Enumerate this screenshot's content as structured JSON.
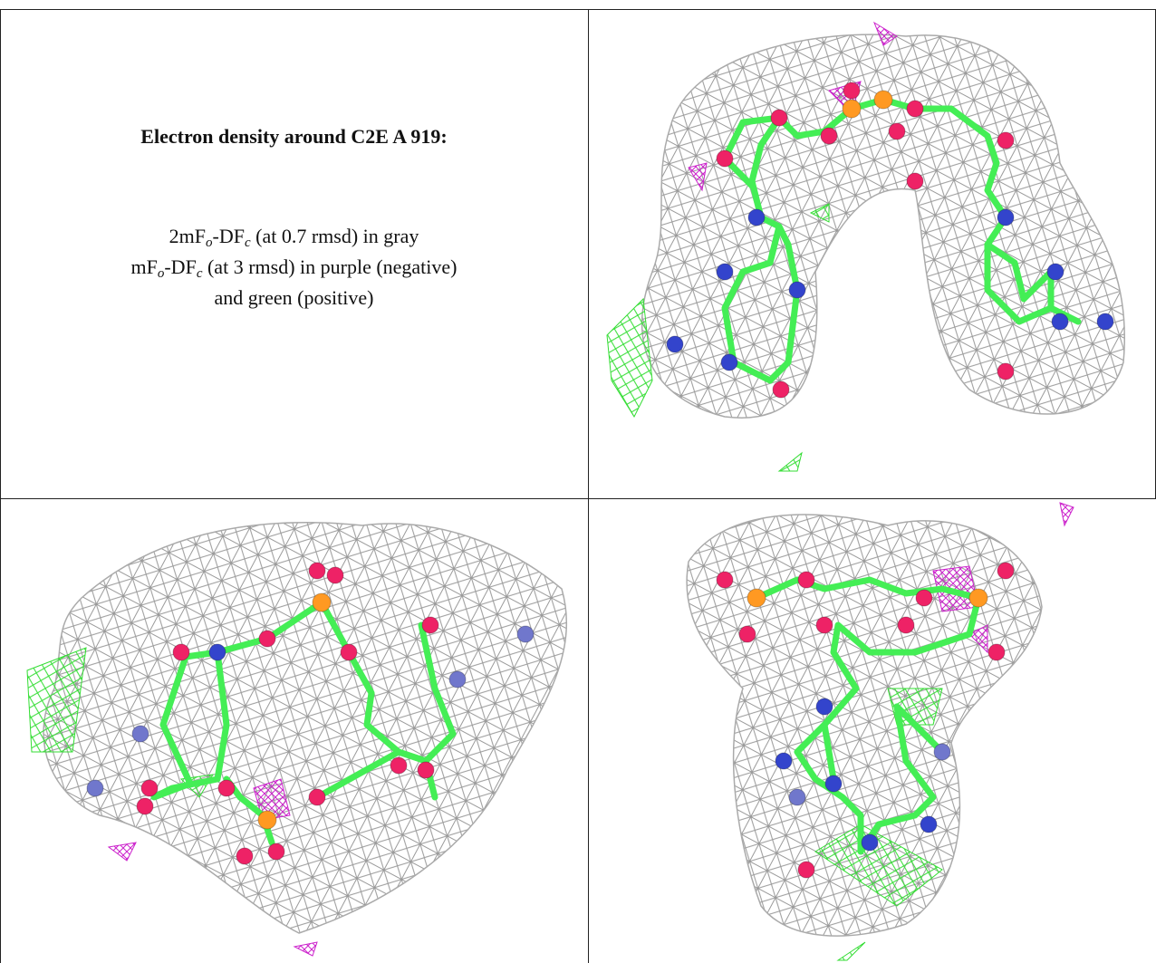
{
  "text": {
    "title": "Electron density around C2E A 919:",
    "lines": [
      [
        "2mF",
        "o",
        "-DF",
        "c",
        " (at 0.7 rmsd) in gray"
      ],
      [
        "mF",
        "o",
        "-DF",
        "c",
        " (at 3 rmsd) in purple (negative)"
      ],
      [
        "and green (positive)"
      ]
    ]
  }
}
